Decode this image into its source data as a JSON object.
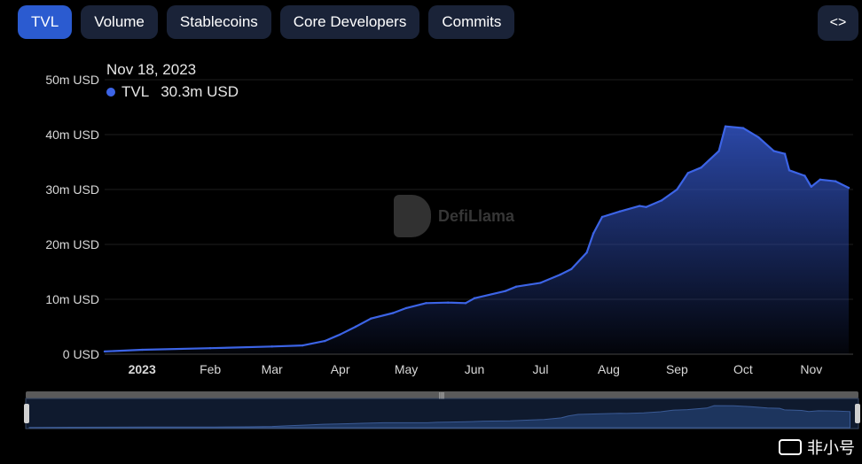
{
  "tabs": [
    {
      "label": "TVL",
      "active": true
    },
    {
      "label": "Volume",
      "active": false
    },
    {
      "label": "Stablecoins",
      "active": false
    },
    {
      "label": "Core Developers",
      "active": false
    },
    {
      "label": "Commits",
      "active": false
    }
  ],
  "embed_icon": "code-brackets-icon",
  "tooltip": {
    "date": "Nov 18, 2023",
    "series": "TVL",
    "value": "30.3m USD"
  },
  "watermark": {
    "text": "DefiLlama",
    "logo": "llama-icon"
  },
  "bottom_logo": {
    "text": "非小号",
    "icon": "toggle-icon"
  },
  "colors": {
    "line": "#3c64e6",
    "area_top": "#2f4fb8",
    "background": "#000000",
    "tab": "#1a2338",
    "tab_active": "#2b5bd0"
  },
  "chart_data": {
    "type": "area",
    "title": "",
    "xlabel": "",
    "ylabel": "",
    "ylim": [
      0,
      50
    ],
    "y_unit": "m USD",
    "yticks": [
      {
        "value": 0,
        "label": "0 USD"
      },
      {
        "value": 10,
        "label": "10m USD"
      },
      {
        "value": 20,
        "label": "20m USD"
      },
      {
        "value": 30,
        "label": "30m USD"
      },
      {
        "value": 40,
        "label": "40m USD"
      },
      {
        "value": 50,
        "label": "50m USD"
      }
    ],
    "xlim": [
      "2022-12-15",
      "2023-11-20"
    ],
    "xticks": [
      {
        "date": "2023-01-01",
        "label": "2023",
        "bold": true
      },
      {
        "date": "2023-02-01",
        "label": "Feb"
      },
      {
        "date": "2023-03-01",
        "label": "Mar"
      },
      {
        "date": "2023-04-01",
        "label": "Apr"
      },
      {
        "date": "2023-05-01",
        "label": "May"
      },
      {
        "date": "2023-06-01",
        "label": "Jun"
      },
      {
        "date": "2023-07-01",
        "label": "Jul"
      },
      {
        "date": "2023-08-01",
        "label": "Aug"
      },
      {
        "date": "2023-09-01",
        "label": "Sep"
      },
      {
        "date": "2023-10-01",
        "label": "Oct"
      },
      {
        "date": "2023-11-01",
        "label": "Nov"
      }
    ],
    "grid": true,
    "series": [
      {
        "name": "TVL",
        "points": [
          [
            "2022-12-15",
            0.5
          ],
          [
            "2023-01-01",
            0.8
          ],
          [
            "2023-02-01",
            1.1
          ],
          [
            "2023-03-01",
            1.4
          ],
          [
            "2023-03-15",
            1.6
          ],
          [
            "2023-03-25",
            2.4
          ],
          [
            "2023-04-01",
            3.6
          ],
          [
            "2023-04-08",
            5.0
          ],
          [
            "2023-04-15",
            6.5
          ],
          [
            "2023-04-25",
            7.5
          ],
          [
            "2023-05-01",
            8.4
          ],
          [
            "2023-05-10",
            9.3
          ],
          [
            "2023-05-20",
            9.4
          ],
          [
            "2023-05-28",
            9.3
          ],
          [
            "2023-06-01",
            10.2
          ],
          [
            "2023-06-15",
            11.5
          ],
          [
            "2023-06-20",
            12.3
          ],
          [
            "2023-07-01",
            13.0
          ],
          [
            "2023-07-10",
            14.5
          ],
          [
            "2023-07-15",
            15.5
          ],
          [
            "2023-07-22",
            18.5
          ],
          [
            "2023-07-25",
            22.0
          ],
          [
            "2023-07-29",
            25.0
          ],
          [
            "2023-08-06",
            26.0
          ],
          [
            "2023-08-15",
            27.0
          ],
          [
            "2023-08-18",
            26.8
          ],
          [
            "2023-08-25",
            28.0
          ],
          [
            "2023-09-01",
            30.0
          ],
          [
            "2023-09-06",
            33.0
          ],
          [
            "2023-09-12",
            34.0
          ],
          [
            "2023-09-20",
            37.0
          ],
          [
            "2023-09-23",
            41.5
          ],
          [
            "2023-10-01",
            41.2
          ],
          [
            "2023-10-08",
            39.5
          ],
          [
            "2023-10-15",
            37.0
          ],
          [
            "2023-10-20",
            36.5
          ],
          [
            "2023-10-22",
            33.5
          ],
          [
            "2023-10-29",
            32.5
          ],
          [
            "2023-11-01",
            30.5
          ],
          [
            "2023-11-05",
            31.8
          ],
          [
            "2023-11-12",
            31.5
          ],
          [
            "2023-11-18",
            30.3
          ]
        ]
      }
    ]
  }
}
